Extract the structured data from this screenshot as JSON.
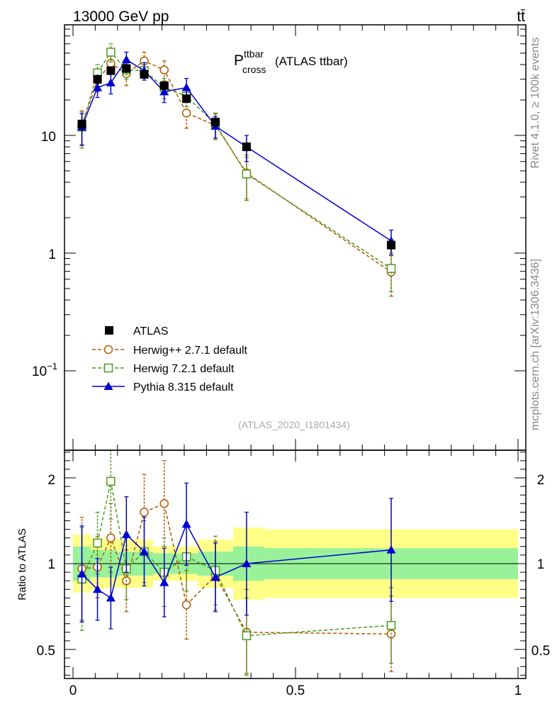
{
  "header": {
    "energy_label": "13000 GeV pp",
    "process_label": "tt̄"
  },
  "side_labels": {
    "rivet": "Rivet 4.1.0, ≥ 100k events",
    "mcplots": "mcplots.cern.ch [arXiv:1306.3436]"
  },
  "chart_data": [
    {
      "type": "scatter",
      "title": "P_cross^ttbar (ATLAS ttbar)",
      "title_main": "P",
      "title_sup": "ttbar",
      "title_sub": "cross",
      "title_suffix": "(ATLAS ttbar)",
      "watermark": "(ATLAS_2020_I1801434)",
      "yscale": "log",
      "ylim": [
        0.025,
        100
      ],
      "xlim": [
        -0.02,
        1.0
      ],
      "y_tick_labels": [
        "10",
        "1",
        "10−1"
      ],
      "legend_position": "lower-left",
      "x": [
        0.02,
        0.055,
        0.085,
        0.12,
        0.16,
        0.205,
        0.255,
        0.32,
        0.39,
        0.715
      ],
      "series": [
        {
          "name": "ATLAS",
          "color": "#000000",
          "marker": "filled-square",
          "values": [
            1.25,
            3.0,
            3.55,
            3.7,
            3.3,
            2.65,
            2.05,
            1.3,
            0.8,
            0.117
          ],
          "err_lo": [
            0.17,
            0.3,
            0.3,
            0.3,
            0.25,
            0.2,
            0.15,
            0.12,
            0.08,
            0.012
          ],
          "err_hi": [
            0.17,
            0.3,
            0.3,
            0.3,
            0.25,
            0.2,
            0.15,
            0.12,
            0.08,
            0.012
          ]
        },
        {
          "name": "Herwig++ 2.7.1 default",
          "color": "#b35900",
          "marker": "open-circle",
          "dashed": true,
          "values": [
            1.22,
            2.95,
            4.1,
            3.35,
            4.3,
            3.6,
            1.55,
            1.22,
            0.48,
            0.069
          ],
          "err_lo": [
            0.4,
            0.6,
            0.8,
            0.7,
            0.8,
            0.7,
            0.4,
            0.3,
            0.2,
            0.026
          ],
          "err_hi": [
            0.4,
            0.6,
            0.8,
            0.7,
            0.8,
            0.7,
            0.4,
            0.3,
            0.2,
            0.026
          ]
        },
        {
          "name": "Herwig 7.2.1 default",
          "color": "#4d9a1e",
          "marker": "open-square",
          "dashed": true,
          "values": [
            1.18,
            3.4,
            5.1,
            3.6,
            3.55,
            2.55,
            2.15,
            1.25,
            0.47,
            0.074
          ],
          "err_lo": [
            0.4,
            0.6,
            0.9,
            0.6,
            0.6,
            0.5,
            0.4,
            0.3,
            0.18,
            0.027
          ],
          "err_hi": [
            0.4,
            0.6,
            0.9,
            0.6,
            0.6,
            0.5,
            0.4,
            0.3,
            0.18,
            0.027
          ]
        },
        {
          "name": "Pythia 8.315 default",
          "color": "#0000d0",
          "marker": "filled-triangle",
          "dashed": false,
          "values": [
            1.18,
            2.55,
            2.8,
            4.4,
            3.55,
            2.35,
            2.55,
            1.2,
            0.8,
            0.127
          ],
          "err_lo": [
            0.35,
            0.45,
            0.55,
            0.7,
            0.6,
            0.45,
            0.5,
            0.25,
            0.2,
            0.03
          ],
          "err_hi": [
            0.35,
            0.45,
            0.55,
            0.7,
            0.6,
            0.45,
            0.5,
            0.25,
            0.2,
            0.03
          ]
        }
      ]
    },
    {
      "type": "scatter",
      "ylabel": "Ratio to ATLAS",
      "ylim": [
        0.34,
        2.32
      ],
      "xlim": [
        -0.02,
        1.0
      ],
      "x_tick_labels": [
        "0",
        "0.5",
        "1"
      ],
      "y_tick_labels": [
        "2",
        "1",
        "0.5"
      ],
      "y_tick_values": [
        2,
        1,
        0.5
      ],
      "x": [
        0.02,
        0.055,
        0.085,
        0.12,
        0.16,
        0.205,
        0.255,
        0.32,
        0.39,
        0.715
      ],
      "bands": {
        "bin_edges": [
          0.0,
          0.04,
          0.07,
          0.1,
          0.14,
          0.18,
          0.23,
          0.28,
          0.36,
          0.43,
          1.0
        ],
        "inner_halfwidth": [
          0.1,
          0.08,
          0.08,
          0.07,
          0.07,
          0.06,
          0.06,
          0.07,
          0.1,
          0.09,
          0.09
        ],
        "outer_halfwidth": [
          0.17,
          0.15,
          0.14,
          0.14,
          0.14,
          0.1,
          0.1,
          0.14,
          0.21,
          0.2,
          0.2
        ],
        "inner_color": "#99f299",
        "outer_color": "#ffff88"
      },
      "series": [
        {
          "name": "Herwig++ 2.7.1 default",
          "values": [
            0.97,
            0.98,
            1.15,
            0.9,
            1.3,
            1.35,
            0.76,
            0.93,
            0.6,
            0.59
          ],
          "err": [
            0.3,
            0.18,
            0.2,
            0.18,
            0.22,
            0.25,
            0.2,
            0.2,
            0.25,
            0.22
          ]
        },
        {
          "name": "Herwig 7.2.1 default",
          "values": [
            0.91,
            1.12,
            1.48,
            0.97,
            1.07,
            0.95,
            1.04,
            0.96,
            0.58,
            0.64
          ],
          "err": [
            0.3,
            0.18,
            0.22,
            0.18,
            0.18,
            0.2,
            0.2,
            0.2,
            0.22,
            0.22
          ]
        },
        {
          "name": "Pythia 8.315 default",
          "values": [
            0.94,
            0.85,
            0.8,
            1.17,
            1.07,
            0.89,
            1.23,
            0.92,
            1.0,
            1.08
          ],
          "err": [
            0.28,
            0.18,
            0.18,
            0.22,
            0.2,
            0.2,
            0.24,
            0.2,
            0.3,
            0.3
          ]
        }
      ]
    }
  ]
}
